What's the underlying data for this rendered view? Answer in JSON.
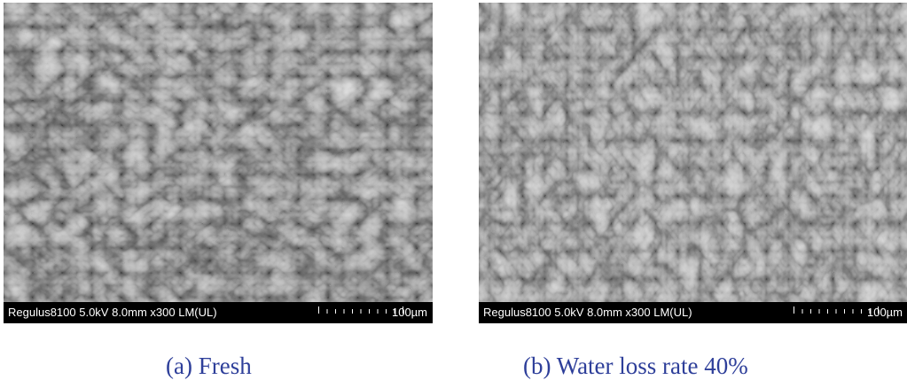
{
  "panels": [
    {
      "info": "Regulus8100 5.0kV 8.0mm x300 LM(UL)",
      "scale_label": "100µm",
      "caption": "(a) Fresh"
    },
    {
      "info": "Regulus8100 5.0kV 8.0mm x300 LM(UL)",
      "scale_label": "100µm",
      "caption": "(b) Water loss rate 40%"
    }
  ],
  "colors": {
    "caption": "#2e3f9a",
    "info_bar": "#000000",
    "info_text": "#ffffff"
  }
}
